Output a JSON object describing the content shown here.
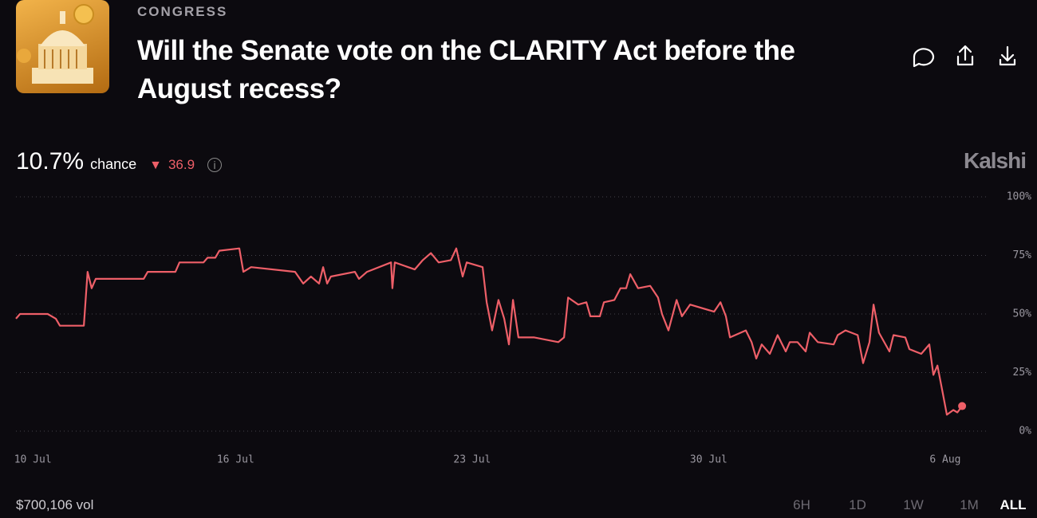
{
  "header": {
    "category": "CONGRESS",
    "title": "Will the Senate vote on the CLARITY Act before the August recess?"
  },
  "summary": {
    "chance_value": "10.7%",
    "chance_label": "chance",
    "change": "36.9",
    "brand": "Kalshi"
  },
  "chart_data": {
    "type": "line",
    "color": "#ee5f68",
    "x": [
      9.5,
      9.62,
      10.44,
      10.68,
      10.8,
      11.51,
      11.62,
      11.74,
      11.86,
      13.28,
      13.4,
      14.22,
      14.34,
      15.05,
      15.17,
      15.4,
      15.52,
      16.11,
      16.23,
      16.46,
      17.76,
      18.0,
      18.23,
      18.47,
      18.59,
      18.71,
      18.82,
      19.53,
      19.65,
      19.89,
      20.6,
      20.64,
      20.71,
      21.3,
      21.54,
      21.78,
      22.01,
      22.37,
      22.53,
      22.72,
      22.84,
      23.31,
      23.43,
      23.59,
      23.78,
      23.95,
      24.09,
      24.21,
      24.37,
      24.84,
      25.55,
      25.72,
      25.84,
      26.14,
      26.38,
      26.5,
      26.78,
      26.9,
      27.21,
      27.39,
      27.56,
      27.68,
      27.91,
      28.27,
      28.5,
      28.62,
      28.81,
      29.05,
      29.21,
      29.45,
      30.16,
      30.35,
      30.51,
      30.63,
      31.1,
      31.27,
      31.41,
      31.57,
      31.81,
      32.04,
      32.28,
      32.4,
      32.63,
      32.87,
      32.99,
      33.23,
      33.7,
      33.82,
      34.05,
      34.41,
      34.57,
      34.76,
      34.88,
      35.04,
      35.35,
      35.47,
      35.82,
      35.94,
      36.29,
      36.53,
      36.65,
      36.77,
      36.93,
      37.05,
      37.24,
      37.36,
      37.5
    ],
    "values": [
      48,
      50,
      50,
      48,
      45,
      45,
      68,
      61,
      65,
      65,
      68,
      68,
      72,
      72,
      74,
      74,
      77,
      78,
      68,
      70,
      68,
      63,
      66,
      63,
      70,
      63,
      66,
      68,
      65,
      68,
      72,
      61,
      72,
      69,
      73,
      76,
      72,
      73,
      78,
      66,
      72,
      70,
      55,
      43,
      56,
      48,
      37,
      56,
      40,
      40,
      38,
      40,
      57,
      54,
      55,
      49,
      49,
      55,
      56,
      61,
      61,
      67,
      61,
      62,
      57,
      50,
      43,
      56,
      49,
      54,
      51,
      55,
      49,
      40,
      43,
      38,
      31,
      37,
      33,
      41,
      34,
      38,
      38,
      34,
      42,
      38,
      37,
      41,
      43,
      41,
      29,
      38,
      54,
      42,
      34,
      41,
      40,
      35,
      33,
      37,
      24,
      28,
      16,
      7,
      9,
      8,
      10.7
    ],
    "xlim": [
      9.5,
      38.3
    ],
    "xticks": [
      {
        "value": 10,
        "label": "10 Jul"
      },
      {
        "value": 16,
        "label": "16 Jul"
      },
      {
        "value": 23,
        "label": "23 Jul"
      },
      {
        "value": 30,
        "label": "30 Jul"
      },
      {
        "value": 37,
        "label": "6 Aug"
      }
    ],
    "ylim": [
      0,
      100
    ],
    "yticks": [
      {
        "value": 0,
        "label": "0%"
      },
      {
        "value": 25,
        "label": "25%"
      },
      {
        "value": 50,
        "label": "50%"
      },
      {
        "value": 75,
        "label": "75%"
      },
      {
        "value": 100,
        "label": "100%"
      }
    ],
    "grid": true
  },
  "footer": {
    "volume": "$700,106 vol",
    "ranges": [
      "6H",
      "1D",
      "1W",
      "1M",
      "ALL"
    ]
  }
}
